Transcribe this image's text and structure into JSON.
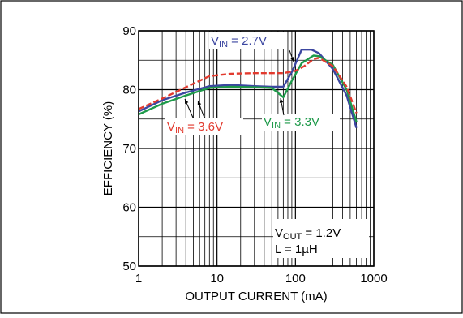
{
  "chart_data": {
    "type": "line",
    "x_scale": "log",
    "xlabel": "OUTPUT CURRENT (mA)",
    "ylabel": "EFFICIENCY (%)",
    "xlim": [
      1,
      1000
    ],
    "ylim": [
      50,
      90
    ],
    "x_ticks": [
      1,
      10,
      100,
      1000
    ],
    "x_tick_labels": [
      "1",
      "10",
      "100",
      "1000"
    ],
    "y_ticks": [
      50,
      60,
      70,
      80,
      90
    ],
    "y_tick_labels": [
      "50",
      "60",
      "70",
      "80",
      "90"
    ],
    "grid": true,
    "series": [
      {
        "label_main": "V",
        "label_sub": "IN",
        "label_rest": " = 2.7V",
        "color": "#3b46a0",
        "style": "solid",
        "points": [
          [
            1,
            76.3
          ],
          [
            2,
            78.2
          ],
          [
            4,
            79.5
          ],
          [
            8,
            80.6
          ],
          [
            15,
            80.8
          ],
          [
            30,
            80.6
          ],
          [
            50,
            80.5
          ],
          [
            70,
            80.5
          ],
          [
            90,
            83.0
          ],
          [
            120,
            86.8
          ],
          [
            160,
            86.8
          ],
          [
            200,
            86.2
          ],
          [
            300,
            83.5
          ],
          [
            450,
            79.0
          ],
          [
            600,
            73.5
          ]
        ]
      },
      {
        "label_main": "V",
        "label_sub": "IN",
        "label_rest": " = 3.3V",
        "color": "#1e9a4a",
        "style": "solid",
        "points": [
          [
            1,
            75.8
          ],
          [
            2,
            77.6
          ],
          [
            4,
            79.0
          ],
          [
            8,
            80.3
          ],
          [
            15,
            80.5
          ],
          [
            30,
            80.4
          ],
          [
            50,
            80.3
          ],
          [
            70,
            78.7
          ],
          [
            90,
            81.5
          ],
          [
            120,
            84.5
          ],
          [
            170,
            85.8
          ],
          [
            200,
            85.7
          ],
          [
            300,
            84.2
          ],
          [
            450,
            80.0
          ],
          [
            600,
            74.5
          ]
        ]
      },
      {
        "label_main": "V",
        "label_sub": "IN",
        "label_rest": " = 3.6V",
        "color": "#e23a2e",
        "style": "dashed",
        "points": [
          [
            1,
            76.7
          ],
          [
            2,
            78.5
          ],
          [
            4,
            80.4
          ],
          [
            8,
            82.3
          ],
          [
            15,
            82.7
          ],
          [
            30,
            82.8
          ],
          [
            50,
            82.8
          ],
          [
            70,
            82.8
          ],
          [
            100,
            83.2
          ],
          [
            130,
            84.0
          ],
          [
            170,
            85.2
          ],
          [
            200,
            85.4
          ],
          [
            300,
            84.0
          ],
          [
            450,
            80.5
          ],
          [
            600,
            76.0
          ]
        ]
      }
    ],
    "conditions": [
      {
        "main": "V",
        "sub": "OUT",
        "rest": " = 1.2V"
      },
      {
        "main": "L = 1µH",
        "sub": "",
        "rest": ""
      }
    ]
  }
}
